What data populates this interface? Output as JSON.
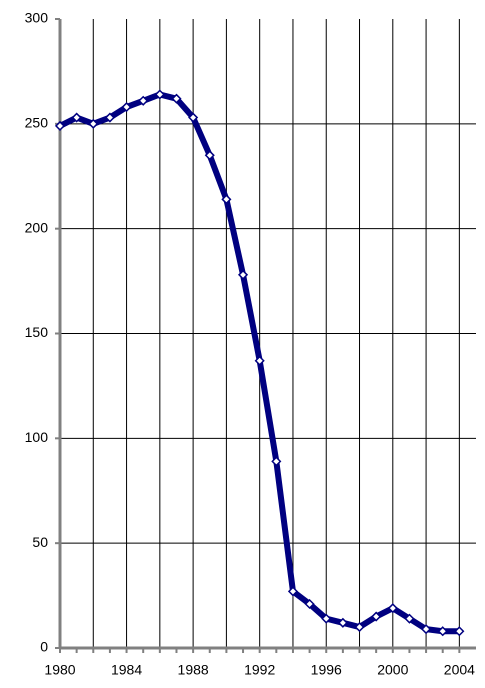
{
  "chart_data": {
    "type": "line",
    "x": [
      1980,
      1981,
      1982,
      1983,
      1984,
      1985,
      1986,
      1987,
      1988,
      1989,
      1990,
      1991,
      1992,
      1993,
      1994,
      1995,
      1996,
      1997,
      1998,
      1999,
      2000,
      2001,
      2002,
      2003,
      2004
    ],
    "series": [
      {
        "color": "#000080",
        "values": [
          249,
          253,
          250,
          253,
          258,
          261,
          264,
          262,
          253,
          235,
          214,
          178,
          137,
          89,
          27,
          21,
          14,
          12,
          10,
          15,
          19,
          14,
          9,
          8,
          8
        ]
      }
    ],
    "xlim": [
      1980,
      2005
    ],
    "xticks": [
      1980,
      1984,
      1988,
      1992,
      1996,
      2000,
      2004
    ],
    "x_grid": [
      1982,
      1984,
      1986,
      1988,
      1990,
      1992,
      1994,
      1996,
      1998,
      2000,
      2002,
      2004
    ],
    "ylim": [
      0,
      300
    ],
    "yticks": [
      0,
      50,
      100,
      150,
      200,
      250,
      300
    ],
    "grid": true
  }
}
